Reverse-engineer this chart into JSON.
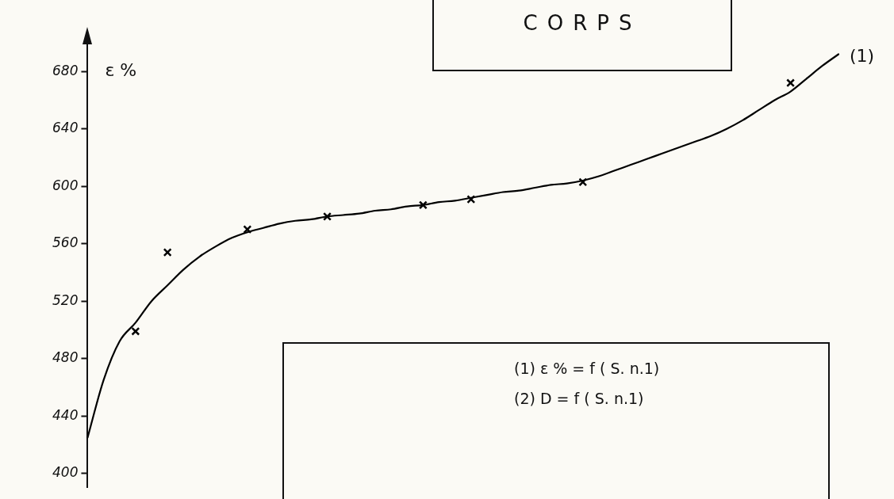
{
  "chart_data": {
    "type": "line",
    "title": "CORPS",
    "ylabel": "ε %",
    "categories": [
      null,
      null,
      null,
      null,
      null,
      null,
      null,
      null,
      null,
      null,
      null,
      null,
      null,
      null,
      null,
      null,
      null,
      null,
      null,
      null,
      null,
      null,
      null,
      null,
      null,
      null,
      null,
      null,
      null,
      null,
      null,
      null,
      null,
      null,
      null,
      null,
      null,
      null,
      null,
      null,
      null,
      null,
      null,
      null,
      null,
      null,
      null,
      null
    ],
    "series": [
      {
        "name": "(1)",
        "color": "#000000",
        "marker": "none",
        "values": [
          425,
          465,
          492,
          505,
          520,
          531,
          542,
          551,
          558,
          564,
          568,
          571,
          574,
          576,
          577,
          579,
          580,
          581,
          583,
          584,
          586,
          587,
          589,
          590,
          592,
          594,
          596,
          597,
          599,
          601,
          602,
          604,
          607,
          611,
          615,
          619,
          623,
          627,
          631,
          635,
          640,
          646,
          653,
          660,
          666,
          675,
          684,
          692
        ]
      },
      {
        "type": "scatter",
        "color": "#000000",
        "marker": "cross",
        "values": [
          null,
          null,
          null,
          499,
          null,
          554,
          null,
          null,
          null,
          null,
          570,
          null,
          null,
          null,
          null,
          579,
          null,
          null,
          null,
          null,
          null,
          587,
          null,
          null,
          591,
          null,
          null,
          null,
          null,
          null,
          null,
          603,
          null,
          null,
          null,
          null,
          null,
          null,
          null,
          null,
          null,
          null,
          null,
          null,
          672,
          null,
          null,
          null
        ]
      }
    ],
    "ylim": [
      390,
      700
    ],
    "yticks": [
      400,
      440,
      480,
      520,
      560,
      600,
      640,
      680
    ],
    "grid": false,
    "legend": false,
    "tick_labels": "y",
    "annotations": [
      "(1) ε % = f ( S. n.1)",
      "(2) D = f ( S. n.1)"
    ]
  }
}
